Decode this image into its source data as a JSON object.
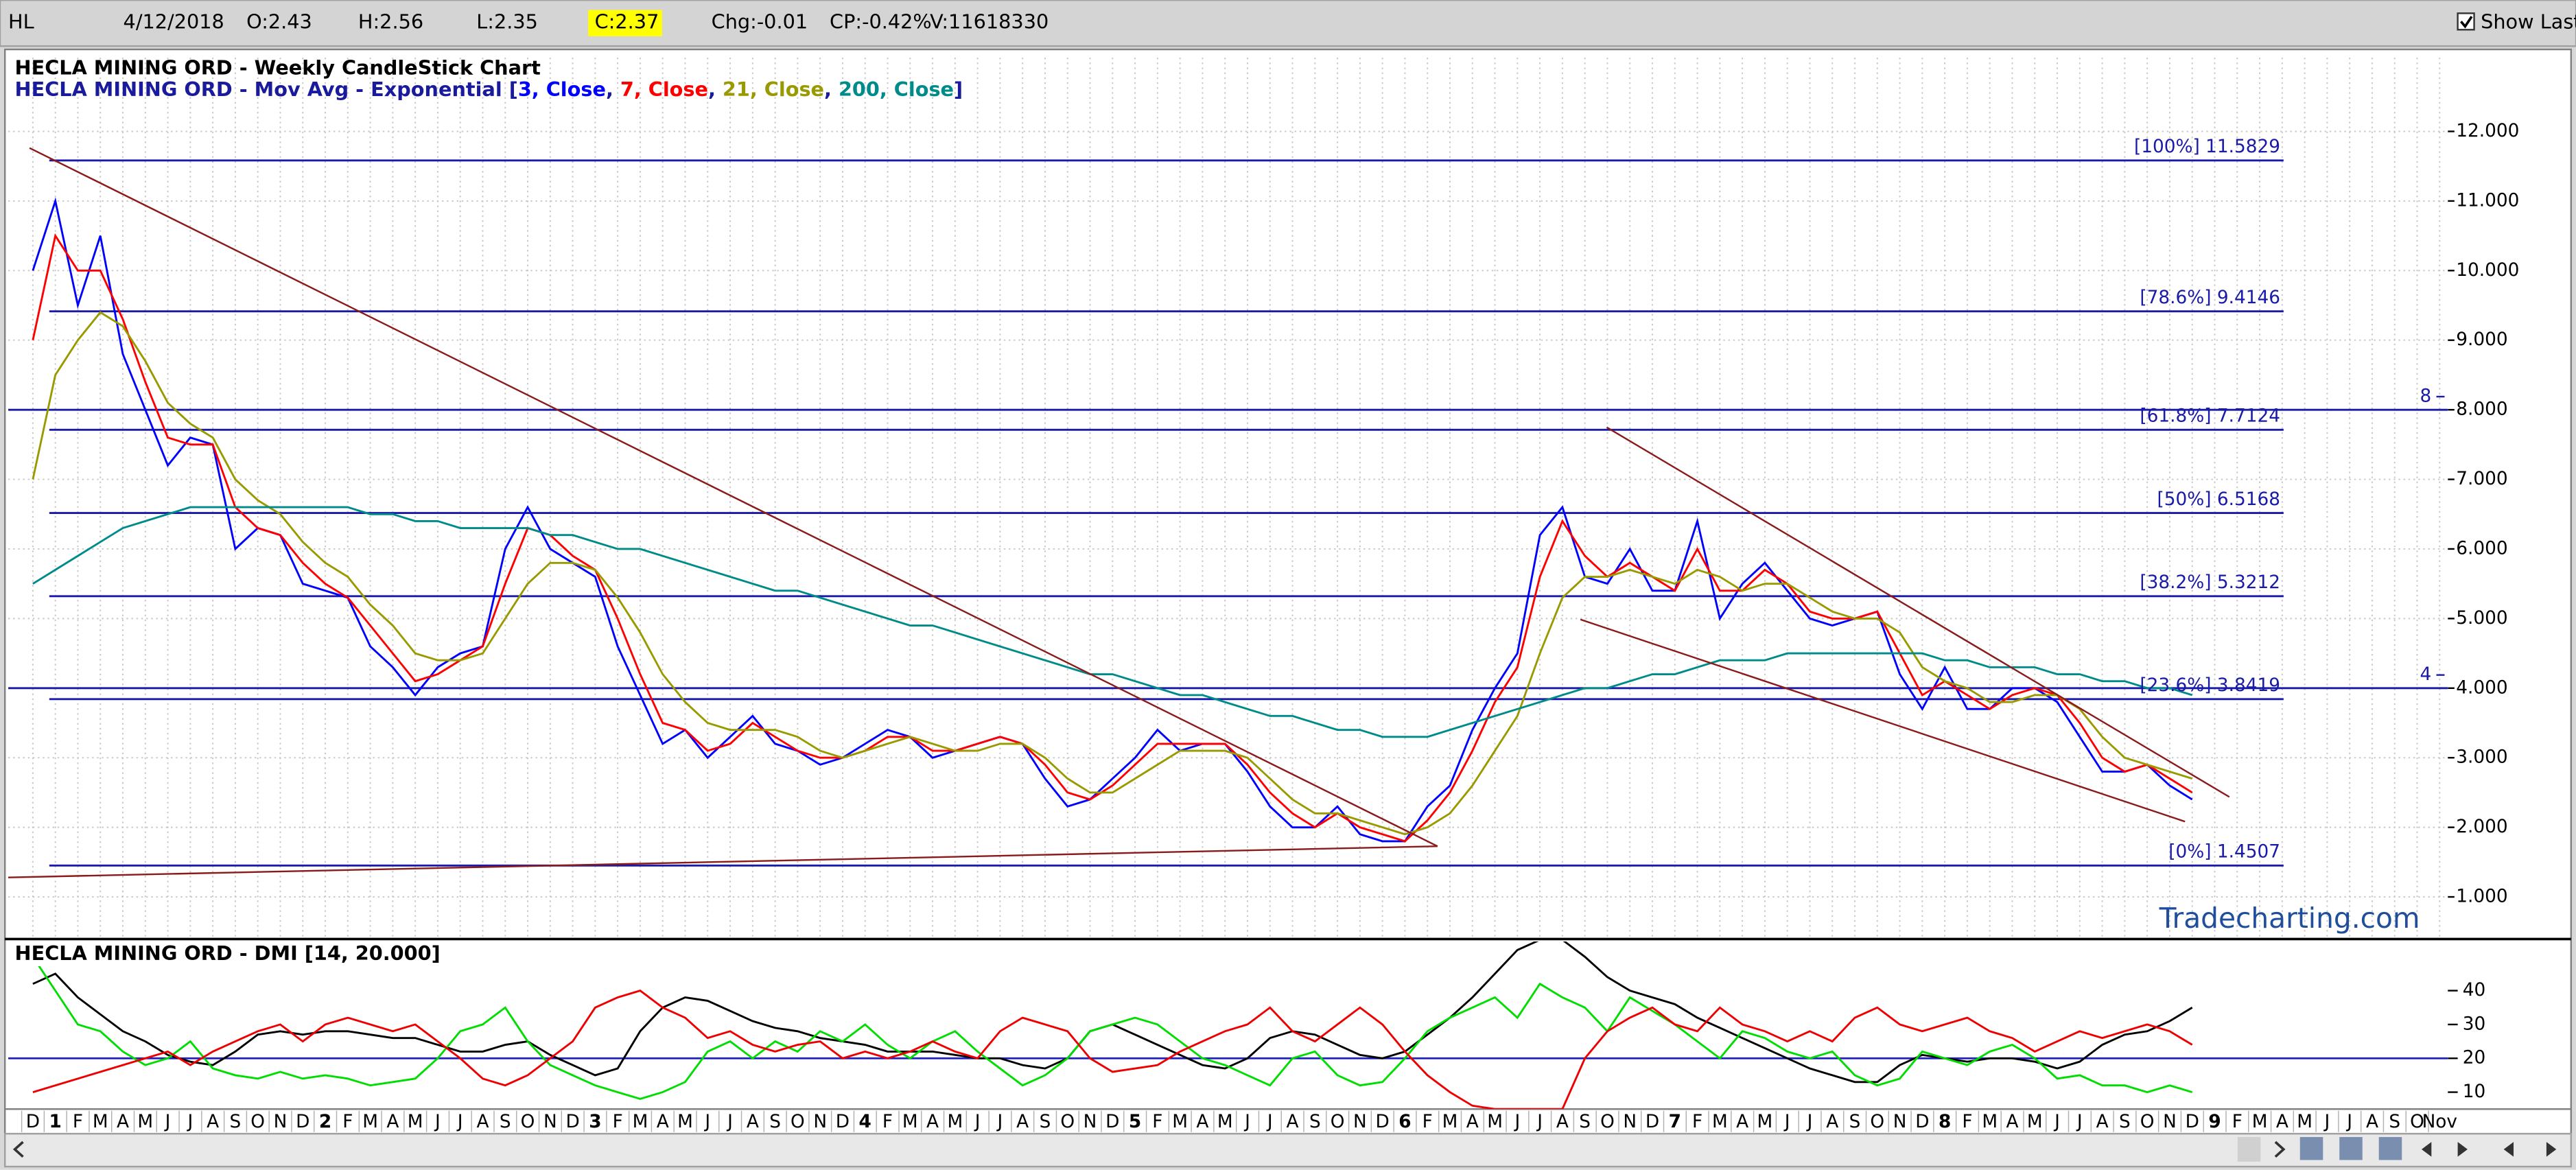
{
  "toolbar": {
    "symbol": "HL",
    "date": "4/12/2018",
    "open": "O:2.43",
    "high": "H:2.56",
    "low": "L:2.35",
    "close": "C:2.37",
    "change": "Chg:-0.01",
    "change_percent": "CP:-0.42%",
    "volume": "V:11618330",
    "show_last": "Show Last"
  },
  "chart_data": [
    {
      "type": "line",
      "title": "HECLA MINING ORD - Weekly CandleStick Chart",
      "subtitle_prefix": "HECLA MINING ORD - Mov Avg - Exponential [",
      "legend_separator": ", ",
      "subtitle_suffix": "]",
      "watermark": "Tradecharting.com",
      "categories": [
        "D",
        "1",
        "F",
        "M",
        "A",
        "M",
        "J",
        "J",
        "A",
        "S",
        "O",
        "N",
        "D",
        "2",
        "F",
        "M",
        "A",
        "M",
        "J",
        "J",
        "A",
        "S",
        "O",
        "N",
        "D",
        "3",
        "F",
        "M",
        "A",
        "M",
        "J",
        "J",
        "A",
        "S",
        "O",
        "N",
        "D",
        "4",
        "F",
        "M",
        "A",
        "M",
        "J",
        "J",
        "A",
        "S",
        "O",
        "N",
        "D",
        "5",
        "F",
        "M",
        "A",
        "M",
        "J",
        "J",
        "A",
        "S",
        "O",
        "N",
        "D",
        "6",
        "F",
        "M",
        "A",
        "M",
        "J",
        "J",
        "A",
        "S",
        "O",
        "N",
        "D",
        "7",
        "F",
        "M",
        "A",
        "M",
        "J",
        "J",
        "A",
        "S",
        "O",
        "N",
        "D",
        "8",
        "F",
        "M",
        "A",
        "M",
        "J",
        "J",
        "A",
        "S",
        "O",
        "N",
        "D",
        "9",
        "F",
        "M",
        "A",
        "M",
        "J",
        "J",
        "A",
        "S",
        "O",
        "Nov"
      ],
      "series": [
        {
          "name": "3, Close",
          "color": "#0000ff",
          "values": [
            10.0,
            11.0,
            9.5,
            10.5,
            8.8,
            8.0,
            7.2,
            7.6,
            7.5,
            6.0,
            6.3,
            6.2,
            5.5,
            5.4,
            5.3,
            4.6,
            4.3,
            3.9,
            4.3,
            4.5,
            4.6,
            6.0,
            6.6,
            6.0,
            5.8,
            5.6,
            4.6,
            3.9,
            3.2,
            3.4,
            3.0,
            3.3,
            3.6,
            3.2,
            3.1,
            2.9,
            3.0,
            3.2,
            3.4,
            3.3,
            3.0,
            3.1,
            3.2,
            3.3,
            3.2,
            2.7,
            2.3,
            2.4,
            2.7,
            3.0,
            3.4,
            3.1,
            3.2,
            3.2,
            2.8,
            2.3,
            2.0,
            2.0,
            2.3,
            1.9,
            1.8,
            1.8,
            2.3,
            2.6,
            3.4,
            4.0,
            4.5,
            6.2,
            6.6,
            5.6,
            5.5,
            6.0,
            5.4,
            5.4,
            6.4,
            5.0,
            5.5,
            5.8,
            5.4,
            5.0,
            4.9,
            5.0,
            5.1,
            4.2,
            3.7,
            4.3,
            3.7,
            3.7,
            4.0,
            4.0,
            3.8,
            3.3,
            2.8,
            2.8,
            2.9,
            2.6,
            2.4,
            null,
            null,
            null,
            null,
            null,
            null,
            null,
            null,
            null,
            null,
            null
          ]
        },
        {
          "name": "7, Close",
          "color": "#ff0000",
          "values": [
            9.0,
            10.5,
            10.0,
            10.0,
            9.3,
            8.4,
            7.6,
            7.5,
            7.5,
            6.6,
            6.3,
            6.2,
            5.8,
            5.5,
            5.3,
            4.9,
            4.5,
            4.1,
            4.2,
            4.4,
            4.6,
            5.5,
            6.3,
            6.2,
            5.9,
            5.7,
            5.0,
            4.2,
            3.5,
            3.4,
            3.1,
            3.2,
            3.5,
            3.3,
            3.1,
            3.0,
            3.0,
            3.1,
            3.3,
            3.3,
            3.1,
            3.1,
            3.2,
            3.3,
            3.2,
            2.9,
            2.5,
            2.4,
            2.6,
            2.9,
            3.2,
            3.2,
            3.2,
            3.2,
            2.9,
            2.5,
            2.2,
            2.0,
            2.2,
            2.0,
            1.9,
            1.8,
            2.1,
            2.5,
            3.1,
            3.8,
            4.3,
            5.6,
            6.4,
            5.9,
            5.6,
            5.8,
            5.6,
            5.4,
            6.0,
            5.4,
            5.4,
            5.7,
            5.5,
            5.1,
            5.0,
            5.0,
            5.1,
            4.5,
            3.9,
            4.1,
            3.9,
            3.7,
            3.9,
            4.0,
            3.9,
            3.5,
            3.0,
            2.8,
            2.9,
            2.7,
            2.5,
            null,
            null,
            null,
            null,
            null,
            null,
            null,
            null,
            null,
            null,
            null
          ]
        },
        {
          "name": "21, Close",
          "color": "#999900",
          "values": [
            7.0,
            8.5,
            9.0,
            9.4,
            9.2,
            8.7,
            8.1,
            7.8,
            7.6,
            7.0,
            6.7,
            6.5,
            6.1,
            5.8,
            5.6,
            5.2,
            4.9,
            4.5,
            4.4,
            4.4,
            4.5,
            5.0,
            5.5,
            5.8,
            5.8,
            5.7,
            5.3,
            4.8,
            4.2,
            3.8,
            3.5,
            3.4,
            3.4,
            3.4,
            3.3,
            3.1,
            3.0,
            3.1,
            3.2,
            3.3,
            3.2,
            3.1,
            3.1,
            3.2,
            3.2,
            3.0,
            2.7,
            2.5,
            2.5,
            2.7,
            2.9,
            3.1,
            3.1,
            3.1,
            3.0,
            2.7,
            2.4,
            2.2,
            2.2,
            2.1,
            2.0,
            1.9,
            2.0,
            2.2,
            2.6,
            3.1,
            3.6,
            4.5,
            5.3,
            5.6,
            5.6,
            5.7,
            5.6,
            5.5,
            5.7,
            5.6,
            5.4,
            5.5,
            5.5,
            5.3,
            5.1,
            5.0,
            5.0,
            4.8,
            4.3,
            4.1,
            4.0,
            3.8,
            3.8,
            3.9,
            3.9,
            3.7,
            3.3,
            3.0,
            2.9,
            2.8,
            2.7,
            null,
            null,
            null,
            null,
            null,
            null,
            null,
            null,
            null,
            null,
            null
          ]
        },
        {
          "name": "200, Close",
          "color": "#008b8b",
          "values": [
            5.5,
            5.7,
            5.9,
            6.1,
            6.3,
            6.4,
            6.5,
            6.6,
            6.6,
            6.6,
            6.6,
            6.6,
            6.6,
            6.6,
            6.6,
            6.5,
            6.5,
            6.4,
            6.4,
            6.3,
            6.3,
            6.3,
            6.3,
            6.2,
            6.2,
            6.1,
            6.0,
            6.0,
            5.9,
            5.8,
            5.7,
            5.6,
            5.5,
            5.4,
            5.4,
            5.3,
            5.2,
            5.1,
            5.0,
            4.9,
            4.9,
            4.8,
            4.7,
            4.6,
            4.5,
            4.4,
            4.3,
            4.2,
            4.2,
            4.1,
            4.0,
            3.9,
            3.9,
            3.8,
            3.7,
            3.6,
            3.6,
            3.5,
            3.4,
            3.4,
            3.3,
            3.3,
            3.3,
            3.4,
            3.5,
            3.6,
            3.7,
            3.8,
            3.9,
            4.0,
            4.0,
            4.1,
            4.2,
            4.2,
            4.3,
            4.4,
            4.4,
            4.4,
            4.5,
            4.5,
            4.5,
            4.5,
            4.5,
            4.5,
            4.5,
            4.4,
            4.4,
            4.3,
            4.3,
            4.3,
            4.2,
            4.2,
            4.1,
            4.1,
            4.0,
            4.0,
            3.9,
            null,
            null,
            null,
            null,
            null,
            null,
            null,
            null,
            null,
            null,
            null
          ]
        }
      ],
      "ylim": [
        0.43,
        13.06
      ],
      "yticks": [
        {
          "value": 1,
          "label": "1.000"
        },
        {
          "value": 2,
          "label": "2.000"
        },
        {
          "value": 3,
          "label": "3.000"
        },
        {
          "value": 4,
          "label": "4.000"
        },
        {
          "value": 5,
          "label": "5.000"
        },
        {
          "value": 6,
          "label": "6.000"
        },
        {
          "value": 7,
          "label": "7.000"
        },
        {
          "value": 8,
          "label": "8.000"
        },
        {
          "value": 9,
          "label": "9.000"
        },
        {
          "value": 10,
          "label": "10.000"
        },
        {
          "value": 11,
          "label": "11.000"
        },
        {
          "value": 12,
          "label": "12.000"
        }
      ],
      "grid": true,
      "fib_color": "#1a1aa8",
      "fib_levels": [
        {
          "value": 11.5829,
          "label": "[100%] 11.5829"
        },
        {
          "value": 9.4146,
          "label": "[78.6%] 9.4146"
        },
        {
          "value": 7.7124,
          "label": "[61.8%] 7.7124"
        },
        {
          "value": 6.5168,
          "label": "[50%] 6.5168"
        },
        {
          "value": 5.3212,
          "label": "[38.2%] 5.3212"
        },
        {
          "value": 3.8419,
          "label": "[23.6%] 3.8419"
        },
        {
          "value": 1.4507,
          "label": "[0%] 1.4507"
        }
      ],
      "reference_lines": [
        8,
        4
      ]
    },
    {
      "type": "line",
      "title": "HECLA MINING ORD - DMI [14, 20.000]",
      "series": [
        {
          "color": "#000000",
          "values": [
            42,
            45,
            38,
            33,
            28,
            25,
            21,
            19,
            18,
            22,
            27,
            28,
            27,
            28,
            28,
            27,
            26,
            26,
            24,
            22,
            22,
            24,
            25,
            21,
            18,
            15,
            17,
            28,
            35,
            38,
            37,
            34,
            31,
            29,
            28,
            26,
            25,
            24,
            22,
            22,
            22,
            21,
            20,
            20,
            18,
            17,
            20,
            28,
            30,
            27,
            24,
            21,
            18,
            17,
            20,
            26,
            28,
            27,
            24,
            21,
            20,
            22,
            27,
            32,
            38,
            45,
            52,
            55,
            55,
            50,
            44,
            40,
            38,
            36,
            32,
            29,
            26,
            23,
            20,
            17,
            15,
            13,
            13,
            18,
            21,
            20,
            19,
            20,
            20,
            19,
            17,
            19,
            24,
            27,
            28,
            31,
            35,
            null,
            null,
            null,
            null,
            null,
            null,
            null,
            null,
            null,
            null,
            null
          ]
        },
        {
          "color": "#00dd00",
          "values": [
            50,
            40,
            30,
            28,
            22,
            18,
            20,
            25,
            17,
            15,
            14,
            16,
            14,
            15,
            14,
            12,
            13,
            14,
            20,
            28,
            30,
            35,
            25,
            18,
            15,
            12,
            10,
            8,
            10,
            13,
            22,
            25,
            20,
            25,
            22,
            28,
            25,
            30,
            24,
            20,
            25,
            28,
            22,
            17,
            12,
            15,
            20,
            28,
            30,
            32,
            30,
            25,
            20,
            18,
            15,
            12,
            20,
            22,
            15,
            12,
            13,
            20,
            28,
            32,
            35,
            38,
            32,
            42,
            38,
            35,
            28,
            38,
            34,
            30,
            25,
            20,
            28,
            26,
            22,
            20,
            22,
            15,
            12,
            14,
            22,
            20,
            18,
            22,
            24,
            20,
            14,
            15,
            12,
            12,
            10,
            12,
            10,
            null,
            null,
            null,
            null,
            null,
            null,
            null,
            null,
            null,
            null,
            null
          ]
        },
        {
          "color": "#ee0000",
          "values": [
            10,
            12,
            14,
            16,
            18,
            20,
            22,
            18,
            22,
            25,
            28,
            30,
            25,
            30,
            32,
            30,
            28,
            30,
            25,
            20,
            14,
            12,
            15,
            20,
            25,
            35,
            38,
            40,
            35,
            32,
            26,
            28,
            24,
            22,
            24,
            25,
            20,
            22,
            20,
            22,
            25,
            22,
            20,
            28,
            32,
            30,
            28,
            20,
            16,
            17,
            18,
            22,
            25,
            28,
            30,
            35,
            28,
            25,
            30,
            35,
            30,
            22,
            15,
            10,
            6,
            5,
            5,
            5,
            5,
            20,
            28,
            32,
            35,
            30,
            28,
            35,
            30,
            28,
            25,
            28,
            25,
            32,
            35,
            30,
            28,
            30,
            32,
            28,
            26,
            22,
            25,
            28,
            26,
            28,
            30,
            28,
            24,
            null,
            null,
            null,
            null,
            null,
            null,
            null,
            null,
            null,
            null,
            null
          ]
        }
      ],
      "ylim": [
        5,
        55
      ],
      "yticks": [
        10,
        20,
        30,
        40
      ],
      "reference_color": "#2020c0",
      "reference_lines": [
        20
      ]
    }
  ]
}
